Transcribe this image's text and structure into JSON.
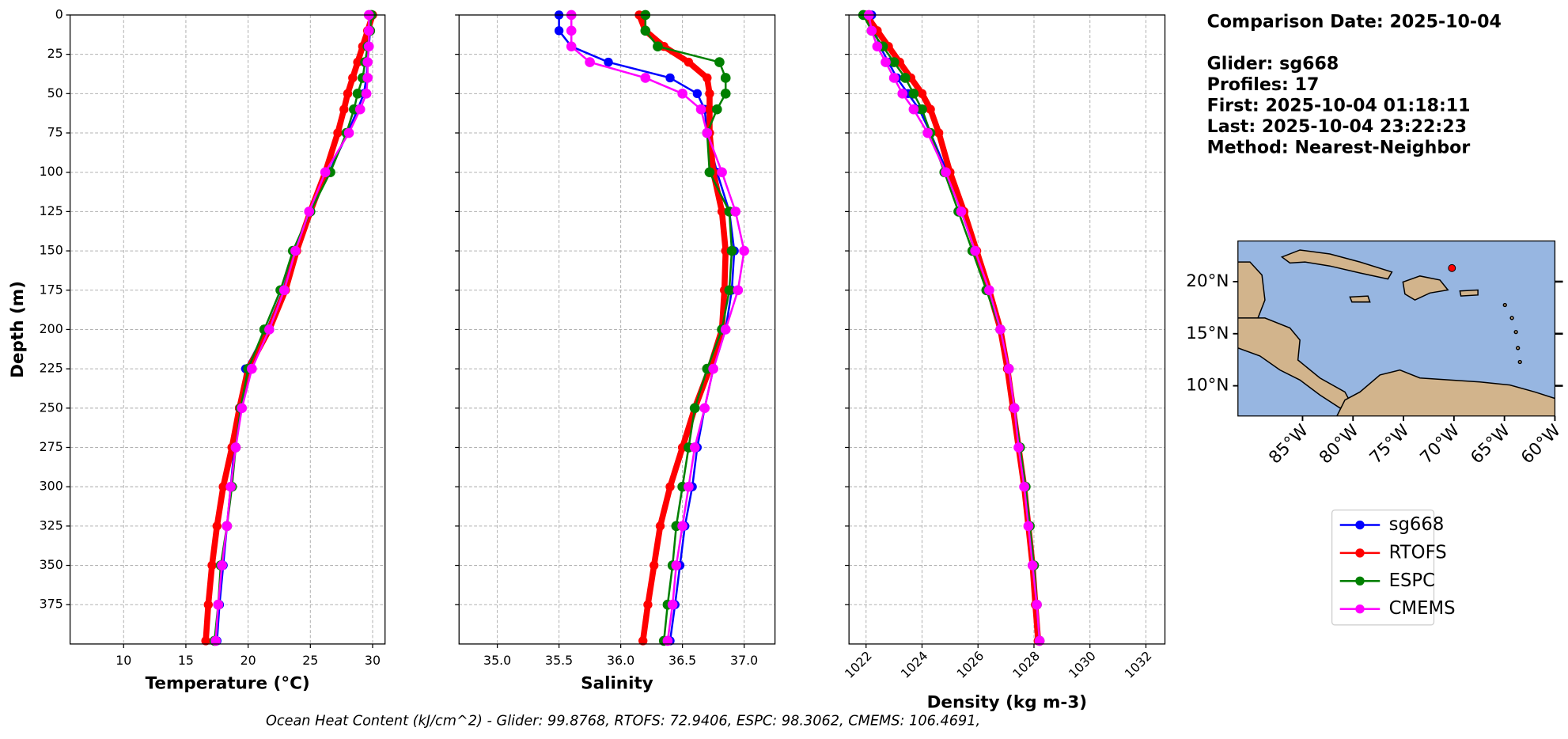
{
  "chart_data": [
    {
      "type": "line",
      "xlabel": "Temperature (°C)",
      "ylabel": "Depth (m)",
      "xlim": [
        5.7,
        31.0
      ],
      "xticks": [
        10,
        15,
        20,
        25,
        30
      ],
      "ylim": [
        0,
        400
      ],
      "y_inverted": true,
      "yticks": [
        0,
        25,
        50,
        75,
        100,
        125,
        150,
        175,
        200,
        225,
        250,
        275,
        300,
        325,
        350,
        375
      ],
      "ytick_labels_shown": true,
      "grid": true,
      "y": [
        0,
        10,
        20,
        30,
        40,
        50,
        60,
        75,
        100,
        125,
        150,
        175,
        200,
        225,
        250,
        275,
        300,
        325,
        350,
        375,
        398
      ],
      "series": [
        {
          "name": "sg668",
          "color": "#0000ff",
          "values": [
            29.8,
            29.8,
            29.7,
            29.6,
            29.5,
            29.3,
            28.8,
            28.0,
            26.5,
            25.0,
            23.7,
            22.8,
            21.5,
            19.8,
            19.3,
            18.9,
            18.6,
            18.3,
            18.0,
            17.7,
            17.5
          ]
        },
        {
          "name": "RTOFS",
          "color": "#ff0000",
          "values": [
            30.0,
            29.6,
            29.2,
            28.8,
            28.4,
            28.0,
            27.7,
            27.2,
            26.2,
            25.0,
            23.9,
            23.0,
            21.7,
            20.0,
            19.3,
            18.7,
            18.0,
            17.5,
            17.1,
            16.8,
            16.6
          ]
        },
        {
          "name": "ESPC",
          "color": "#008000",
          "values": [
            29.9,
            29.8,
            29.6,
            29.4,
            29.2,
            28.8,
            28.5,
            27.9,
            26.6,
            25.0,
            23.6,
            22.6,
            21.3,
            20.0,
            19.4,
            19.0,
            18.7,
            18.3,
            17.8,
            17.6,
            17.3
          ]
        },
        {
          "name": "CMEMS",
          "color": "#ff00ff",
          "values": [
            29.7,
            29.7,
            29.7,
            29.6,
            29.6,
            29.5,
            29.0,
            28.1,
            26.2,
            24.9,
            23.8,
            22.9,
            21.7,
            20.3,
            19.5,
            19.0,
            18.6,
            18.3,
            17.9,
            17.6,
            17.4
          ]
        }
      ]
    },
    {
      "type": "line",
      "xlabel": "Salinity",
      "xlim": [
        34.69,
        37.25
      ],
      "xticks": [
        {
          "value": 35,
          "label": "35.0"
        },
        35.5,
        {
          "value": 36,
          "label": "36.0"
        },
        36.5,
        {
          "value": 37,
          "label": "37.0"
        }
      ],
      "ylim": [
        0,
        400
      ],
      "y_inverted": true,
      "yticks": [
        0,
        25,
        50,
        75,
        100,
        125,
        150,
        175,
        200,
        225,
        250,
        275,
        300,
        325,
        350,
        375
      ],
      "ytick_labels_shown": false,
      "grid": true,
      "y": [
        0,
        10,
        20,
        30,
        40,
        50,
        60,
        75,
        100,
        125,
        150,
        175,
        200,
        225,
        250,
        275,
        300,
        325,
        350,
        375,
        398
      ],
      "series": [
        {
          "name": "sg668",
          "color": "#0000ff",
          "values": [
            35.5,
            35.5,
            35.6,
            35.9,
            36.4,
            36.62,
            36.68,
            36.7,
            36.78,
            36.88,
            36.92,
            36.9,
            36.85,
            36.75,
            36.68,
            36.62,
            36.58,
            36.52,
            36.48,
            36.44,
            36.4
          ]
        },
        {
          "name": "RTOFS",
          "color": "#ff0000",
          "values": [
            36.15,
            36.2,
            36.35,
            36.55,
            36.7,
            36.72,
            36.72,
            36.72,
            36.75,
            36.82,
            36.85,
            36.84,
            36.82,
            36.72,
            36.6,
            36.5,
            36.4,
            36.32,
            36.27,
            36.22,
            36.18
          ]
        },
        {
          "name": "ESPC",
          "color": "#008000",
          "values": [
            36.2,
            36.2,
            36.3,
            36.8,
            36.85,
            36.85,
            36.78,
            36.7,
            36.72,
            36.88,
            36.9,
            36.88,
            36.82,
            36.7,
            36.6,
            36.55,
            36.5,
            36.45,
            36.42,
            36.38,
            36.35
          ]
        },
        {
          "name": "CMEMS",
          "color": "#ff00ff",
          "values": [
            35.6,
            35.6,
            35.6,
            35.75,
            36.2,
            36.5,
            36.65,
            36.7,
            36.82,
            36.93,
            37.0,
            36.95,
            36.85,
            36.75,
            36.68,
            36.6,
            36.55,
            36.5,
            36.45,
            36.42,
            36.38
          ]
        }
      ]
    },
    {
      "type": "line",
      "xlabel": "Density (kg m-3)",
      "xlim": [
        1021.39,
        1032.68
      ],
      "xticks": [
        1022,
        1024,
        1026,
        1028,
        1030,
        1032
      ],
      "xtick_rotation": 45,
      "ylim": [
        0,
        400
      ],
      "y_inverted": true,
      "yticks": [
        0,
        25,
        50,
        75,
        100,
        125,
        150,
        175,
        200,
        225,
        250,
        275,
        300,
        325,
        350,
        375
      ],
      "ytick_labels_shown": false,
      "grid": true,
      "y": [
        0,
        10,
        20,
        30,
        40,
        50,
        60,
        75,
        100,
        125,
        150,
        175,
        200,
        225,
        250,
        275,
        300,
        325,
        350,
        375,
        398
      ],
      "series": [
        {
          "name": "sg668",
          "color": "#0000ff",
          "values": [
            1022.2,
            1022.3,
            1022.5,
            1022.8,
            1023.1,
            1023.5,
            1023.9,
            1024.3,
            1024.9,
            1025.4,
            1025.9,
            1026.4,
            1026.8,
            1027.1,
            1027.3,
            1027.5,
            1027.7,
            1027.8,
            1027.95,
            1028.1,
            1028.2
          ]
        },
        {
          "name": "RTOFS",
          "color": "#ff0000",
          "values": [
            1022.0,
            1022.4,
            1022.8,
            1023.2,
            1023.6,
            1024.0,
            1024.3,
            1024.6,
            1025.0,
            1025.5,
            1025.95,
            1026.4,
            1026.8,
            1027.05,
            1027.25,
            1027.45,
            1027.65,
            1027.8,
            1027.95,
            1028.05,
            1028.15
          ]
        },
        {
          "name": "ESPC",
          "color": "#008000",
          "values": [
            1021.9,
            1022.2,
            1022.6,
            1023.0,
            1023.4,
            1023.7,
            1024.0,
            1024.3,
            1024.8,
            1025.3,
            1025.8,
            1026.3,
            1026.8,
            1027.1,
            1027.3,
            1027.5,
            1027.7,
            1027.85,
            1028.0,
            1028.1,
            1028.2
          ]
        },
        {
          "name": "CMEMS",
          "color": "#ff00ff",
          "values": [
            1022.1,
            1022.2,
            1022.4,
            1022.7,
            1023.0,
            1023.3,
            1023.7,
            1024.2,
            1024.85,
            1025.4,
            1025.9,
            1026.4,
            1026.8,
            1027.1,
            1027.3,
            1027.45,
            1027.65,
            1027.8,
            1027.95,
            1028.1,
            1028.2
          ]
        }
      ]
    },
    {
      "type": "map",
      "ocean_color": "#97b6e1",
      "land_color": "#d2b48c",
      "xlim": [
        -91.4,
        -60
      ],
      "xticks": [
        {
          "value": -85,
          "label": "85°W"
        },
        {
          "value": -80,
          "label": "80°W"
        },
        {
          "value": -75,
          "label": "75°W"
        },
        {
          "value": -70,
          "label": "70°W"
        },
        {
          "value": -65,
          "label": "65°W"
        },
        {
          "value": -60,
          "label": "60°W"
        }
      ],
      "ylim": [
        7.1,
        23.9
      ],
      "yticks": [
        {
          "value": 10,
          "label": "10°N"
        },
        {
          "value": 15,
          "label": "15°N"
        },
        {
          "value": 20,
          "label": "20°N"
        }
      ],
      "marker": {
        "lon": -70.2,
        "lat": 21.3,
        "color": "#ff0000"
      }
    }
  ],
  "info": [
    "Comparison Date: 2025-10-04",
    "Glider: sg668",
    "Profiles: 17",
    "First: 2025-10-04 01:18:11",
    "Last: 2025-10-04 23:22:23",
    "Method: Nearest-Neighbor"
  ],
  "footer": "Ocean Heat Content (kJ/cm^2) - Glider: 99.8768,  RTOFS: 72.9406,  ESPC: 98.3062,  CMEMS: 106.4691,"
}
